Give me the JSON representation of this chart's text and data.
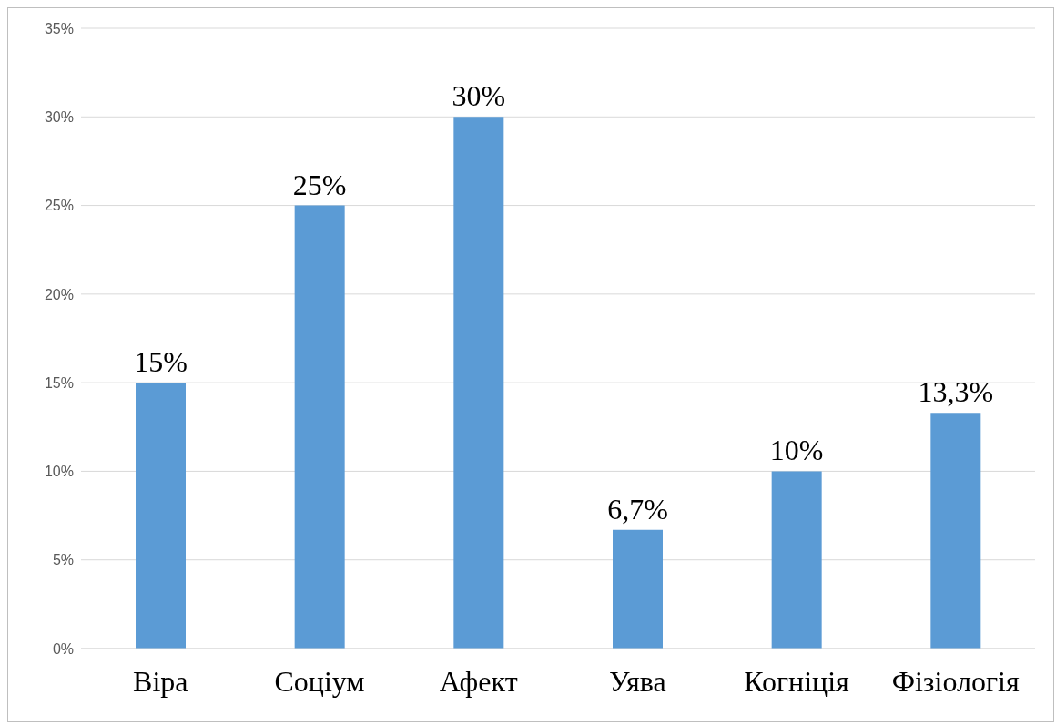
{
  "chart_data": {
    "type": "bar",
    "categories": [
      "Віра",
      "Соціум",
      "Афект",
      "Уява",
      "Когніція",
      "Фізіологія"
    ],
    "values": [
      15,
      25,
      30,
      6.7,
      10,
      13.3
    ],
    "color": "#5b9bd5",
    "value_labels": [
      "15%",
      "25%",
      "30%",
      "6,7%",
      "10%",
      "13,3%"
    ],
    "ylim": [
      0,
      35
    ],
    "yticks": [
      {
        "value": 0,
        "label": "0%"
      },
      {
        "value": 5,
        "label": "5%"
      },
      {
        "value": 10,
        "label": "10%"
      },
      {
        "value": 15,
        "label": "15%"
      },
      {
        "value": 20,
        "label": "20%"
      },
      {
        "value": 25,
        "label": "25%"
      },
      {
        "value": 30,
        "label": "30%"
      },
      {
        "value": 35,
        "label": "35%"
      }
    ],
    "grid": "y",
    "legend": false
  }
}
